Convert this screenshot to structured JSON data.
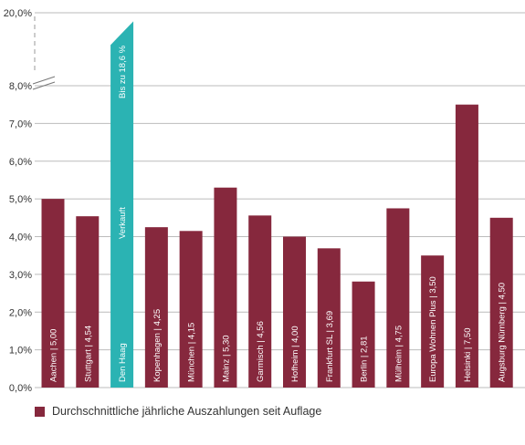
{
  "chart_data": {
    "type": "bar",
    "categories": [
      "Aachen",
      "Stuttgart",
      "Den Haag",
      "Kopenhagen",
      "München",
      "Mainz",
      "Garmisch",
      "Hofheim",
      "Frankfurt SL",
      "Berlin",
      "Mülheim",
      "Europa Wohnen Plus",
      "Helsinki",
      "Augsburg Nürnberg"
    ],
    "series": [
      {
        "name": "Durchschnittliche jährliche Auszahlungen seit Auflage",
        "values": [
          5.0,
          4.54,
          18.6,
          4.25,
          4.15,
          5.3,
          4.56,
          4.0,
          3.69,
          2.81,
          4.75,
          3.5,
          7.5,
          4.5
        ]
      }
    ],
    "bar_labels": [
      "Aachen | 5,00",
      "Stuttgart | 4,54",
      "Den Haag",
      "Kopenhagen | 4,25",
      "München | 4,15",
      "Mainz | 5,30",
      "Garmisch | 4,56",
      "Hofheim | 4,00",
      "Frankfurt SL | 3,69",
      "Berlin | 2,81",
      "Mülheim | 4,75",
      "Europa Wohnen Plus | 3,50",
      "Helsinki | 7,50",
      "Augsburg Nürnberg | 4,50"
    ],
    "highlight": {
      "category": "Den Haag",
      "annotations": [
        "Bis zu 18,6 %",
        "Verkauft"
      ],
      "color": "#2bb3b3"
    },
    "y_ticks": [
      {
        "value": 0,
        "label": "0,0%"
      },
      {
        "value": 1,
        "label": "1,0%"
      },
      {
        "value": 2,
        "label": "2,0%"
      },
      {
        "value": 3,
        "label": "3,0%"
      },
      {
        "value": 4,
        "label": "4,0%"
      },
      {
        "value": 5,
        "label": "5,0%"
      },
      {
        "value": 6,
        "label": "6,0%"
      },
      {
        "value": 7,
        "label": "7,0%"
      },
      {
        "value": 8,
        "label": "8,0%"
      },
      {
        "value": 20,
        "label": "20,0%"
      }
    ],
    "ylim": [
      0,
      20
    ],
    "axis_break": [
      8,
      20
    ],
    "grid": true,
    "legend_position": "bottom-left",
    "colors": {
      "bar": "#86283d",
      "highlight": "#2bb3b3",
      "grid": "#bbbbbb",
      "text": "#333333"
    }
  }
}
